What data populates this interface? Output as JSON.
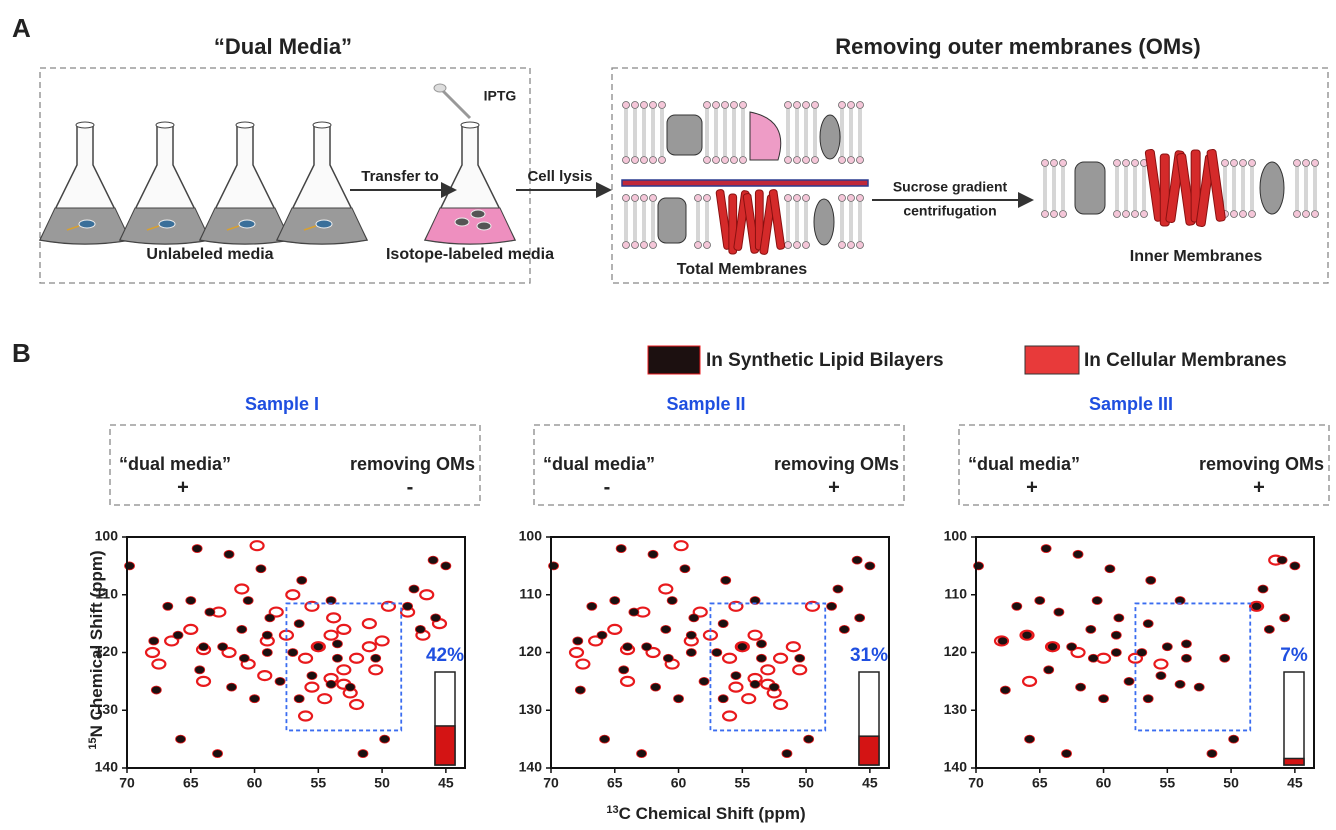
{
  "panel_a": {
    "label": "A",
    "left_title": "“Dual Media”",
    "right_title": "Removing outer membranes (OMs)",
    "iptg": "IPTG",
    "transfer": "Transfer to",
    "cell_lysis": "Cell lysis",
    "unlabeled": "Unlabeled media",
    "labeled": "Isotope-labeled media",
    "sucrose_1": "Sucrose gradient",
    "sucrose_2": "centrifugation",
    "total": "Total Membranes",
    "inner": "Inner Membranes"
  },
  "panel_b": {
    "label": "B",
    "y_label_sup": "15",
    "y_label": "N Chemical Shift (ppm)",
    "x_label_sup": "13",
    "x_label": "C Chemical Shift (ppm)"
  },
  "chart_data": [
    {
      "type": "scatter",
      "title": "Sample I",
      "conditions": [
        {
          "label": "“dual media”",
          "sign": "+"
        },
        {
          "label": "removing OMs",
          "sign": "-"
        }
      ],
      "xlim": [
        70,
        43.5
      ],
      "ylim": [
        100,
        140
      ],
      "xticks": [
        70,
        65,
        60,
        55,
        50,
        45
      ],
      "yticks": [
        100,
        110,
        120,
        130,
        140
      ],
      "region": {
        "x": [
          57.5,
          48.5
        ],
        "y": [
          111.5,
          133.5
        ]
      },
      "percent": {
        "values": [
          42
        ],
        "value_labels": [
          "42%"
        ]
      },
      "series": [
        {
          "name": "In Cellular Membranes",
          "color": "#e8191c",
          "x": [
            68,
            66.5,
            64,
            62,
            60.5,
            59,
            57.5,
            56,
            55,
            54,
            53,
            52,
            51,
            55.5,
            54.5,
            53,
            52,
            56,
            54,
            52.5,
            50.5,
            49.5,
            59.8,
            61,
            62.8,
            65,
            67.5,
            64,
            58.3,
            55.5,
            53.8,
            51,
            46.5,
            45.5,
            48,
            46.8,
            57,
            53,
            50,
            59.2
          ],
          "values": [
            120,
            118,
            119.5,
            120,
            122,
            118,
            117,
            121,
            119,
            117,
            123,
            121,
            119,
            126,
            128,
            125.5,
            129,
            131,
            124.5,
            127,
            123,
            112,
            101.5,
            109,
            113,
            116,
            122,
            125,
            113,
            112,
            114,
            115,
            110,
            115,
            113,
            117,
            110,
            116,
            118,
            124
          ]
        },
        {
          "name": "In Synthetic Lipid Bilayers",
          "color": "#1c1010",
          "x": [
            69.8,
            64.5,
            62,
            59.5,
            56.3,
            54,
            66.8,
            65,
            63.5,
            60.5,
            58.8,
            61,
            59,
            56.5,
            67.9,
            66,
            64,
            62.5,
            60.8,
            59,
            57,
            55,
            53.5,
            55.5,
            54,
            52.5,
            58,
            56.5,
            60,
            61.8,
            64.3,
            67.7,
            65.8,
            62.9,
            51.5,
            49.8,
            46,
            45,
            47.5,
            48,
            47,
            45.8,
            53.5,
            50.5
          ],
          "values": [
            105,
            102,
            103,
            105.5,
            107.5,
            111,
            112,
            111,
            113,
            111,
            114,
            116,
            117,
            115,
            118,
            117,
            119,
            119,
            121,
            120,
            120,
            119,
            121,
            124,
            125.5,
            126,
            125,
            128,
            128,
            126,
            123,
            126.5,
            135,
            137.5,
            137.5,
            135,
            104,
            105,
            109,
            112,
            116,
            114,
            118.5,
            121
          ]
        }
      ]
    },
    {
      "type": "scatter",
      "title": "Sample II",
      "conditions": [
        {
          "label": "“dual media”",
          "sign": "-"
        },
        {
          "label": "removing OMs",
          "sign": "+"
        }
      ],
      "xlim": [
        70,
        43.5
      ],
      "ylim": [
        100,
        140
      ],
      "xticks": [
        70,
        65,
        60,
        55,
        50,
        45
      ],
      "yticks": [
        100,
        110,
        120,
        130,
        140
      ],
      "region": {
        "x": [
          57.5,
          48.5
        ],
        "y": [
          111.5,
          133.5
        ]
      },
      "percent": {
        "values": [
          31
        ],
        "value_labels": [
          "31%"
        ]
      },
      "series": [
        {
          "name": "In Cellular Membranes",
          "color": "#e8191c",
          "x": [
            68,
            66.5,
            64,
            62,
            60.5,
            59,
            57.5,
            56,
            55,
            54,
            53,
            52,
            51,
            55.5,
            54.5,
            53,
            52,
            56,
            54,
            52.5,
            50.5,
            49.5,
            59.8,
            61,
            62.8,
            65,
            67.5,
            64,
            58.3,
            55.5
          ],
          "values": [
            120,
            118,
            119.5,
            120,
            122,
            118,
            117,
            121,
            119,
            117,
            123,
            121,
            119,
            126,
            128,
            125.5,
            129,
            131,
            124.5,
            127,
            123,
            112,
            101.5,
            109,
            113,
            116,
            122,
            125,
            113,
            112
          ]
        },
        {
          "name": "In Synthetic Lipid Bilayers",
          "color": "#1c1010",
          "x": [
            69.8,
            64.5,
            62,
            59.5,
            56.3,
            54,
            66.8,
            65,
            63.5,
            60.5,
            58.8,
            61,
            59,
            56.5,
            67.9,
            66,
            64,
            62.5,
            60.8,
            59,
            57,
            55,
            53.5,
            55.5,
            54,
            52.5,
            58,
            56.5,
            60,
            61.8,
            64.3,
            67.7,
            65.8,
            62.9,
            51.5,
            49.8,
            46,
            45,
            47.5,
            48,
            47,
            45.8,
            53.5,
            50.5
          ],
          "values": [
            105,
            102,
            103,
            105.5,
            107.5,
            111,
            112,
            111,
            113,
            111,
            114,
            116,
            117,
            115,
            118,
            117,
            119,
            119,
            121,
            120,
            120,
            119,
            121,
            124,
            125.5,
            126,
            125,
            128,
            128,
            126,
            123,
            126.5,
            135,
            137.5,
            137.5,
            135,
            104,
            105,
            109,
            112,
            116,
            114,
            118.5,
            121
          ]
        }
      ]
    },
    {
      "type": "scatter",
      "title": "Sample III",
      "conditions": [
        {
          "label": "“dual media”",
          "sign": "+"
        },
        {
          "label": "removing OMs",
          "sign": "+"
        }
      ],
      "xlim": [
        70,
        43.5
      ],
      "ylim": [
        100,
        140
      ],
      "xticks": [
        70,
        65,
        60,
        55,
        50,
        45
      ],
      "yticks": [
        100,
        110,
        120,
        130,
        140
      ],
      "region": {
        "x": [
          57.5,
          48.5
        ],
        "y": [
          111.5,
          133.5
        ]
      },
      "percent": {
        "values": [
          7
        ],
        "value_labels": [
          "7%"
        ]
      },
      "series": [
        {
          "name": "In Cellular Membranes",
          "color": "#e8191c",
          "x": [
            68,
            66,
            64,
            62,
            60,
            57.5,
            55.5,
            46.5,
            65.8,
            48
          ],
          "values": [
            118,
            117,
            119,
            120,
            121,
            121,
            122,
            104,
            125,
            112
          ]
        },
        {
          "name": "In Synthetic Lipid Bilayers",
          "color": "#1c1010",
          "x": [
            69.8,
            64.5,
            62,
            59.5,
            56.3,
            54,
            66.8,
            65,
            63.5,
            60.5,
            58.8,
            61,
            59,
            56.5,
            67.9,
            66,
            64,
            62.5,
            60.8,
            59,
            57,
            55,
            53.5,
            55.5,
            54,
            52.5,
            58,
            56.5,
            60,
            61.8,
            64.3,
            67.7,
            65.8,
            62.9,
            51.5,
            49.8,
            46,
            45,
            47.5,
            48,
            47,
            45.8,
            53.5,
            50.5
          ],
          "values": [
            105,
            102,
            103,
            105.5,
            107.5,
            111,
            112,
            111,
            113,
            111,
            114,
            116,
            117,
            115,
            118,
            117,
            119,
            119,
            121,
            120,
            120,
            119,
            121,
            124,
            125.5,
            126,
            125,
            128,
            128,
            126,
            123,
            126.5,
            135,
            137.5,
            137.5,
            135,
            104,
            105,
            109,
            112,
            116,
            114,
            118.5,
            121
          ]
        }
      ]
    }
  ]
}
